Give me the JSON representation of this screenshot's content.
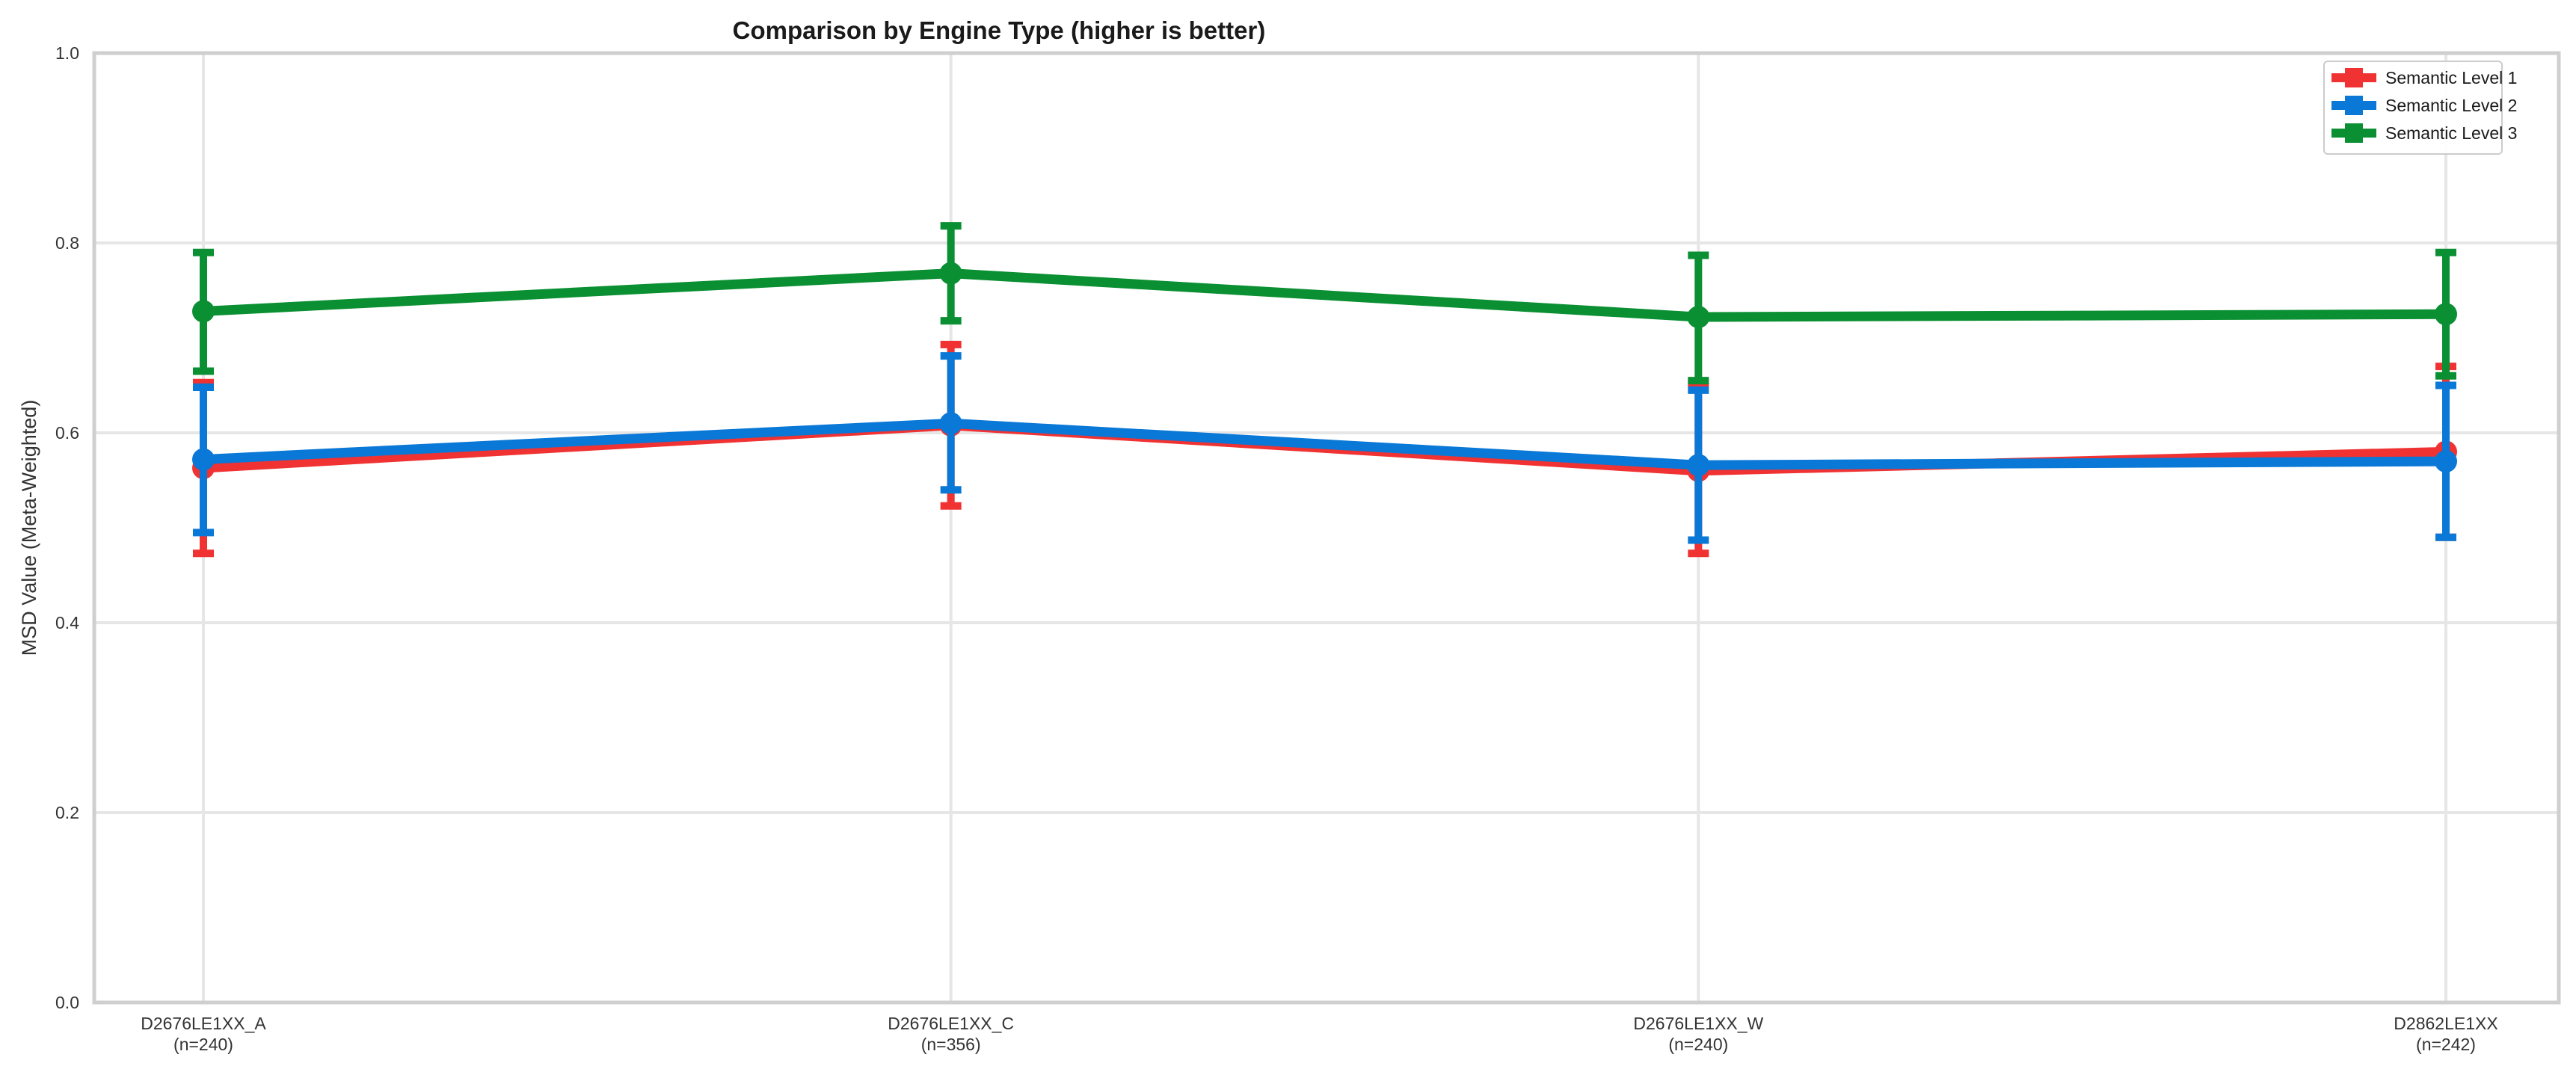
{
  "chart_data": {
    "type": "line",
    "title": "Comparison by Engine Type (higher is better)",
    "xlabel": "",
    "ylabel": "MSD Value (Meta-Weighted)",
    "ylim": [
      0,
      1.0
    ],
    "y_ticks": [
      "0.0",
      "0.2",
      "0.4",
      "0.6",
      "0.8",
      "1.0"
    ],
    "grid": true,
    "legend_position": "top-right",
    "categories": [
      {
        "name": "D2676LE1XX_A",
        "n": "(n=240)"
      },
      {
        "name": "D2676LE1XX_C",
        "n": "(n=356)"
      },
      {
        "name": "D2676LE1XX_W",
        "n": "(n=240)"
      },
      {
        "name": "D2862LE1XX",
        "n": "(n=242)"
      }
    ],
    "series": [
      {
        "name": "Semantic Level 1",
        "color": "#f03232",
        "values": [
          0.563,
          0.608,
          0.56,
          0.58
        ],
        "err_low": [
          0.473,
          0.523,
          0.473,
          0.49
        ],
        "err_high": [
          0.653,
          0.693,
          0.652,
          0.67
        ]
      },
      {
        "name": "Semantic Level 2",
        "color": "#0a78d6",
        "values": [
          0.572,
          0.61,
          0.566,
          0.57
        ],
        "err_low": [
          0.495,
          0.54,
          0.487,
          0.49
        ],
        "err_high": [
          0.648,
          0.681,
          0.645,
          0.65
        ]
      },
      {
        "name": "Semantic Level 3",
        "color": "#0a8f32",
        "values": [
          0.728,
          0.768,
          0.722,
          0.725
        ],
        "err_low": [
          0.665,
          0.718,
          0.655,
          0.66
        ],
        "err_high": [
          0.79,
          0.818,
          0.787,
          0.79
        ]
      }
    ]
  }
}
